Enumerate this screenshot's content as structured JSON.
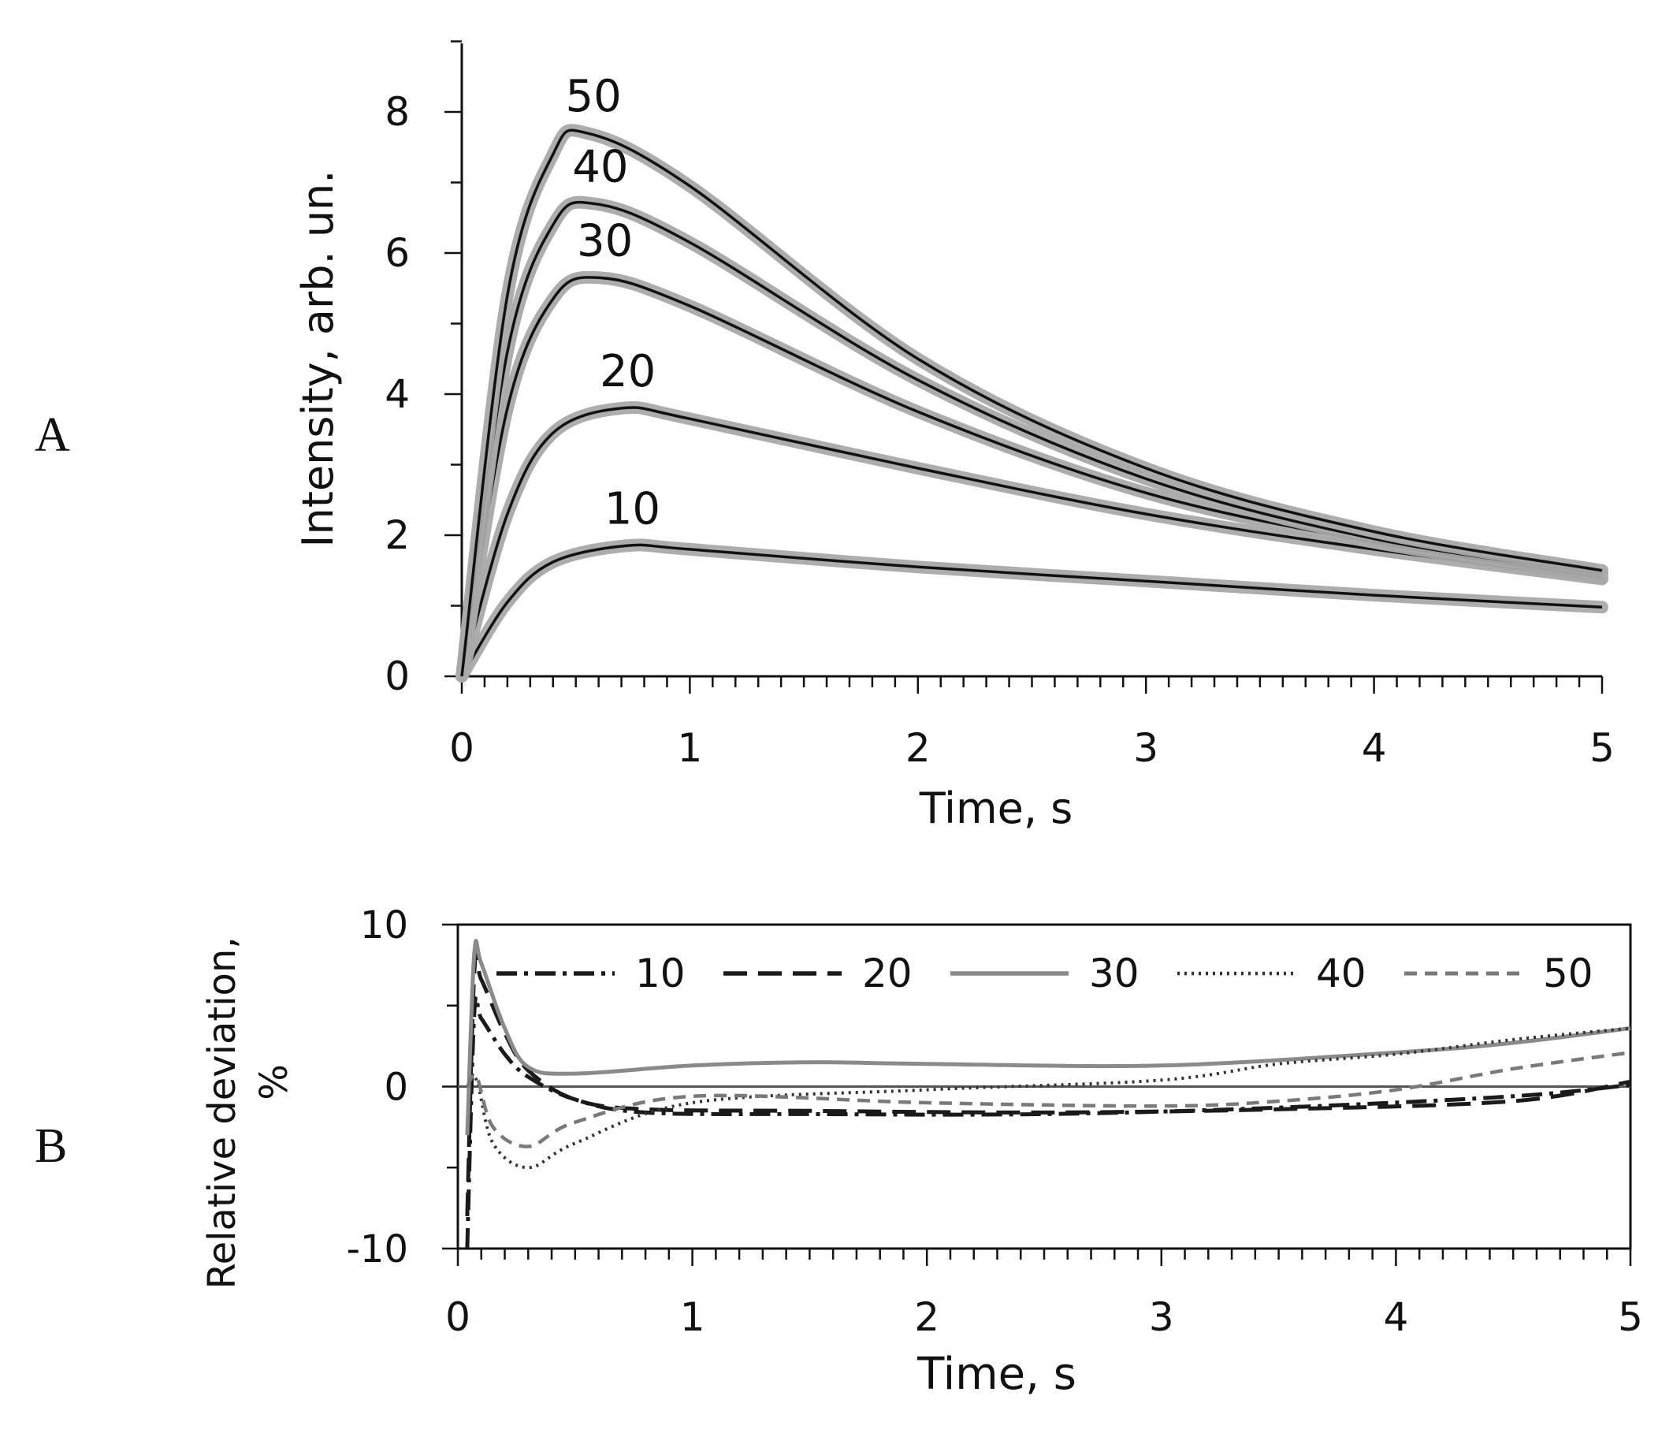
{
  "panel_labels": {
    "a": "A",
    "b": "B"
  },
  "colors": {
    "fit_line": "#111111",
    "band": "#a9a9a9",
    "zero_line": "#555555",
    "series_10": "#1a1a1a",
    "series_20": "#1a1a1a",
    "series_30": "#8a8a8a",
    "series_40": "#333333",
    "series_50": "#7a7a7a"
  },
  "chart_data": [
    {
      "type": "line",
      "panel": "A",
      "title": "",
      "xlabel": "Time, s",
      "ylabel": "Intensity, arb. un.",
      "xlim": [
        0,
        5
      ],
      "ylim": [
        0,
        9
      ],
      "xticks": [
        0,
        1,
        2,
        3,
        4,
        5
      ],
      "yticks": [
        0,
        2,
        4,
        6,
        8
      ],
      "grid": false,
      "series": [
        {
          "name": "10",
          "peak_x": 0.72,
          "peak_y": 1.85,
          "end_y": 0.98,
          "x": [
            0,
            0.2,
            0.4,
            0.72,
            1,
            2,
            3,
            4,
            5
          ],
          "y": [
            0,
            1.05,
            1.62,
            1.85,
            1.8,
            1.55,
            1.35,
            1.15,
            0.98
          ]
        },
        {
          "name": "20",
          "peak_x": 0.7,
          "peak_y": 3.8,
          "end_y": 1.38,
          "x": [
            0,
            0.2,
            0.4,
            0.7,
            1,
            2,
            3,
            4,
            5
          ],
          "y": [
            0,
            2.3,
            3.45,
            3.8,
            3.65,
            2.95,
            2.3,
            1.8,
            1.38
          ]
        },
        {
          "name": "30",
          "peak_x": 0.6,
          "peak_y": 5.65,
          "end_y": 1.4,
          "x": [
            0,
            0.2,
            0.4,
            0.6,
            1,
            2,
            3,
            4,
            5
          ],
          "y": [
            0,
            3.8,
            5.35,
            5.65,
            5.25,
            3.75,
            2.6,
            1.9,
            1.4
          ]
        },
        {
          "name": "40",
          "peak_x": 0.58,
          "peak_y": 6.7,
          "end_y": 1.45,
          "x": [
            0,
            0.2,
            0.4,
            0.58,
            1,
            2,
            3,
            4,
            5
          ],
          "y": [
            0,
            4.6,
            6.4,
            6.7,
            6.15,
            4.2,
            2.8,
            1.95,
            1.45
          ]
        },
        {
          "name": "50",
          "peak_x": 0.55,
          "peak_y": 7.7,
          "end_y": 1.5,
          "x": [
            0,
            0.2,
            0.4,
            0.55,
            1,
            2,
            3,
            4,
            5
          ],
          "y": [
            0,
            5.4,
            7.4,
            7.7,
            6.95,
            4.5,
            2.95,
            2.05,
            1.5
          ]
        }
      ]
    },
    {
      "type": "line",
      "panel": "B",
      "title": "",
      "xlabel": "Time, s",
      "ylabel_lines": [
        "Relative deviation,",
        "%"
      ],
      "xlim": [
        0,
        5
      ],
      "ylim": [
        -10,
        10
      ],
      "xticks": [
        0,
        1,
        2,
        3,
        4,
        5
      ],
      "yticks": [
        -10,
        0,
        10
      ],
      "grid": false,
      "legend_position": "top",
      "series": [
        {
          "name": "10",
          "style": "dash-dot",
          "x": [
            0.04,
            0.07,
            0.1,
            0.2,
            0.3,
            0.5,
            0.8,
            1.5,
            2.5,
            3.5,
            4.5,
            5
          ],
          "y": [
            -10,
            4.5,
            4.2,
            2.0,
            0.6,
            -0.8,
            -1.6,
            -1.7,
            -1.7,
            -1.3,
            -0.6,
            0.1
          ]
        },
        {
          "name": "20",
          "style": "long-dash",
          "x": [
            0.04,
            0.07,
            0.1,
            0.2,
            0.3,
            0.5,
            0.8,
            1.5,
            2.5,
            3.5,
            4.5,
            5
          ],
          "y": [
            -8,
            7.0,
            6.6,
            3.3,
            1.0,
            -0.8,
            -1.4,
            -1.5,
            -1.6,
            -1.4,
            -0.9,
            0.3
          ]
        },
        {
          "name": "30",
          "style": "solid",
          "x": [
            0.04,
            0.07,
            0.1,
            0.2,
            0.3,
            0.5,
            1,
            1.5,
            2,
            3,
            4,
            4.5,
            5
          ],
          "y": [
            -3,
            8.2,
            7.6,
            3.6,
            1.2,
            0.8,
            1.3,
            1.5,
            1.4,
            1.3,
            2.1,
            2.7,
            3.6
          ]
        },
        {
          "name": "40",
          "style": "dotted",
          "x": [
            0.04,
            0.08,
            0.15,
            0.3,
            0.5,
            1,
            2,
            3,
            3.5,
            4,
            4.5,
            5
          ],
          "y": [
            0,
            0.4,
            -3.5,
            -5.0,
            -3.5,
            -1.0,
            -0.2,
            0.4,
            1.4,
            2.0,
            2.9,
            3.6
          ]
        },
        {
          "name": "50",
          "style": "dashed",
          "x": [
            0.04,
            0.08,
            0.15,
            0.3,
            0.5,
            1,
            2,
            3,
            3.5,
            4,
            4.5,
            5
          ],
          "y": [
            0,
            0.6,
            -2.5,
            -3.7,
            -2.2,
            -0.6,
            -1.0,
            -1.2,
            -0.9,
            -0.2,
            1.1,
            2.1
          ]
        }
      ]
    }
  ]
}
